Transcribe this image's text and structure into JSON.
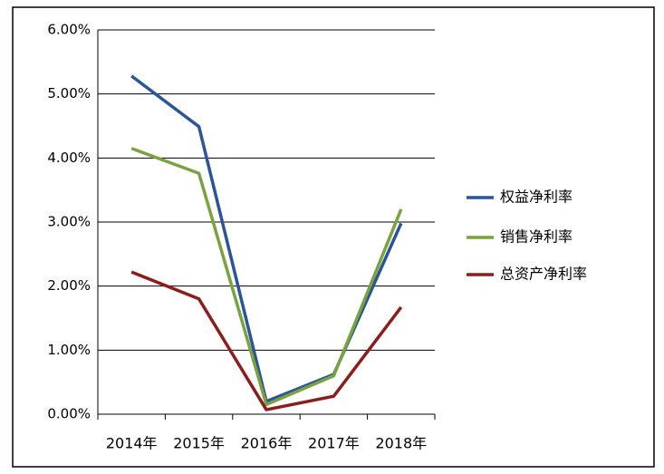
{
  "chart_data": {
    "type": "line",
    "categories": [
      "2014年",
      "2015年",
      "2016年",
      "2017年",
      "2018年"
    ],
    "series": [
      {
        "name": "权益净利率",
        "color": "#2a5599",
        "values": [
          5.28,
          4.49,
          0.2,
          0.62,
          2.98
        ]
      },
      {
        "name": "销售净利率",
        "color": "#7aa23f",
        "values": [
          4.15,
          3.76,
          0.15,
          0.6,
          3.2
        ]
      },
      {
        "name": "总资产净利率",
        "color": "#8e1c1c",
        "values": [
          2.22,
          1.8,
          0.07,
          0.28,
          1.67
        ]
      }
    ],
    "ylim": [
      0,
      6
    ],
    "yticks": [
      {
        "value": 0,
        "label": "0.00%"
      },
      {
        "value": 1,
        "label": "1.00%"
      },
      {
        "value": 2,
        "label": "2.00%"
      },
      {
        "value": 3,
        "label": "3.00%"
      },
      {
        "value": 4,
        "label": "4.00%"
      },
      {
        "value": 5,
        "label": "5.00%"
      },
      {
        "value": 6,
        "label": "6.00%"
      }
    ],
    "grid": true,
    "legend": "right"
  }
}
